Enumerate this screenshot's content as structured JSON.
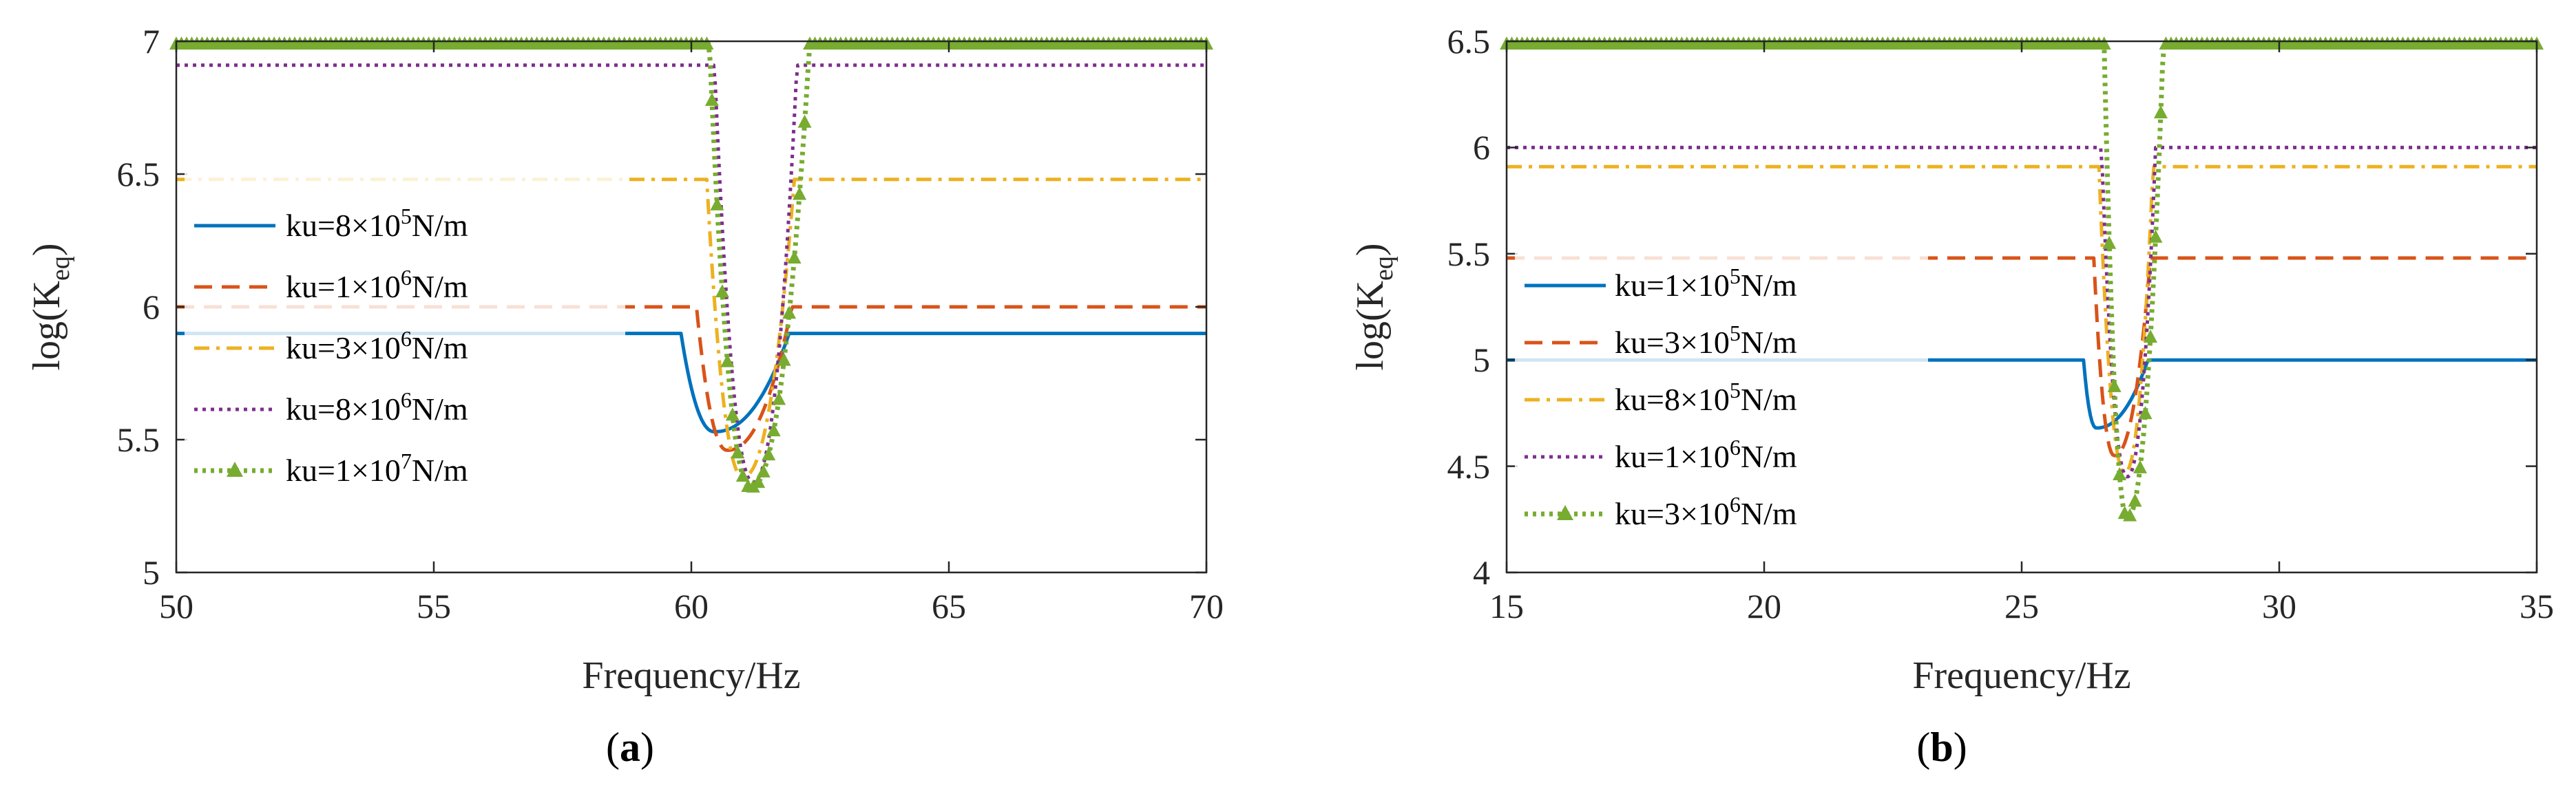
{
  "chart_data": [
    {
      "type": "line",
      "panel": "a",
      "panel_label_open": "(",
      "panel_label_letter": "a",
      "panel_label_close": ")",
      "title": "",
      "xlabel": "Frequency/Hz",
      "ylabel_main": "log(K",
      "ylabel_sub": "eq",
      "ylabel_close": ")",
      "xlim": [
        50,
        70
      ],
      "ylim": [
        5,
        7
      ],
      "xticks": [
        50,
        55,
        60,
        65,
        70
      ],
      "yticks": [
        5,
        5.5,
        6,
        6.5,
        7
      ],
      "xtick_labels": [
        "50",
        "55",
        "60",
        "65",
        "70"
      ],
      "ytick_labels": [
        "5",
        "5.5",
        "6",
        "6.5",
        "7"
      ],
      "legend_position": "center-left",
      "series": [
        {
          "name_pre": "ku=8×10",
          "name_exp": "5",
          "name_post": "N/m",
          "color": "#0072BD",
          "style": "solid",
          "marker": "none",
          "baseline": 5.9,
          "dip_start": 59.8,
          "dip_end": 61.9,
          "minimum": 5.53,
          "min_freq": 60.45
        },
        {
          "name_pre": "ku=1×10",
          "name_exp": "6",
          "name_post": "N/m",
          "color": "#D95319",
          "style": "dashed",
          "marker": "none",
          "baseline": 6.0,
          "dip_start": 60.1,
          "dip_end": 61.95,
          "minimum": 5.46,
          "min_freq": 60.7
        },
        {
          "name_pre": "ku=3×10",
          "name_exp": "6",
          "name_post": "N/m",
          "color": "#EDB120",
          "style": "dashdot",
          "marker": "none",
          "baseline": 6.48,
          "dip_start": 60.3,
          "dip_end": 62.0,
          "minimum": 5.36,
          "min_freq": 61.0
        },
        {
          "name_pre": "ku=8×10",
          "name_exp": "6",
          "name_post": "N/m",
          "color": "#7E2F8E",
          "style": "dotted",
          "marker": "none",
          "baseline": 6.91,
          "dip_start": 60.45,
          "dip_end": 62.05,
          "minimum": 5.34,
          "min_freq": 61.2
        },
        {
          "name_pre": "ku=1×10",
          "name_exp": "7",
          "name_post": "N/m",
          "color": "#77AC30",
          "style": "dotted",
          "marker": "triangle",
          "baseline": 7.0,
          "dip_start": 60.35,
          "dip_end": 62.3,
          "minimum": 5.32,
          "min_freq": 61.15
        }
      ]
    },
    {
      "type": "line",
      "panel": "b",
      "panel_label_open": "(",
      "panel_label_letter": "b",
      "panel_label_close": ")",
      "title": "",
      "xlabel": "Frequency/Hz",
      "ylabel_main": "log(K",
      "ylabel_sub": "eq",
      "ylabel_close": ")",
      "xlim": [
        15,
        35
      ],
      "ylim": [
        4,
        6.5
      ],
      "xticks": [
        15,
        20,
        25,
        30,
        35
      ],
      "yticks": [
        4,
        4.5,
        5,
        5.5,
        6,
        6.5
      ],
      "xtick_labels": [
        "15",
        "20",
        "25",
        "30",
        "35"
      ],
      "ytick_labels": [
        "4",
        "4.5",
        "5",
        "5.5",
        "6",
        "6.5"
      ],
      "legend_position": "center-left",
      "series": [
        {
          "name_pre": "ku=1×10",
          "name_exp": "5",
          "name_post": "N/m",
          "color": "#0072BD",
          "style": "solid",
          "marker": "none",
          "baseline": 5.0,
          "dip_start": 26.2,
          "dip_end": 27.45,
          "minimum": 4.68,
          "min_freq": 26.45
        },
        {
          "name_pre": "ku=3×10",
          "name_exp": "5",
          "name_post": "N/m",
          "color": "#D95319",
          "style": "dashed",
          "marker": "none",
          "baseline": 5.48,
          "dip_start": 26.4,
          "dip_end": 27.5,
          "minimum": 4.55,
          "min_freq": 26.8
        },
        {
          "name_pre": "ku=8×10",
          "name_exp": "5",
          "name_post": "N/m",
          "color": "#EDB120",
          "style": "dashdot",
          "marker": "none",
          "baseline": 5.91,
          "dip_start": 26.5,
          "dip_end": 27.55,
          "minimum": 4.47,
          "min_freq": 27.0
        },
        {
          "name_pre": "ku=1×10",
          "name_exp": "6",
          "name_post": "N/m",
          "color": "#7E2F8E",
          "style": "dotted",
          "marker": "none",
          "baseline": 6.0,
          "dip_start": 26.55,
          "dip_end": 27.6,
          "minimum": 4.45,
          "min_freq": 27.05
        },
        {
          "name_pre": "ku=3×10",
          "name_exp": "6",
          "name_post": "N/m",
          "color": "#77AC30",
          "style": "dotted",
          "marker": "triangle",
          "baseline": 6.5,
          "dip_start": 26.6,
          "dip_end": 27.75,
          "minimum": 4.26,
          "min_freq": 27.05
        }
      ]
    }
  ]
}
